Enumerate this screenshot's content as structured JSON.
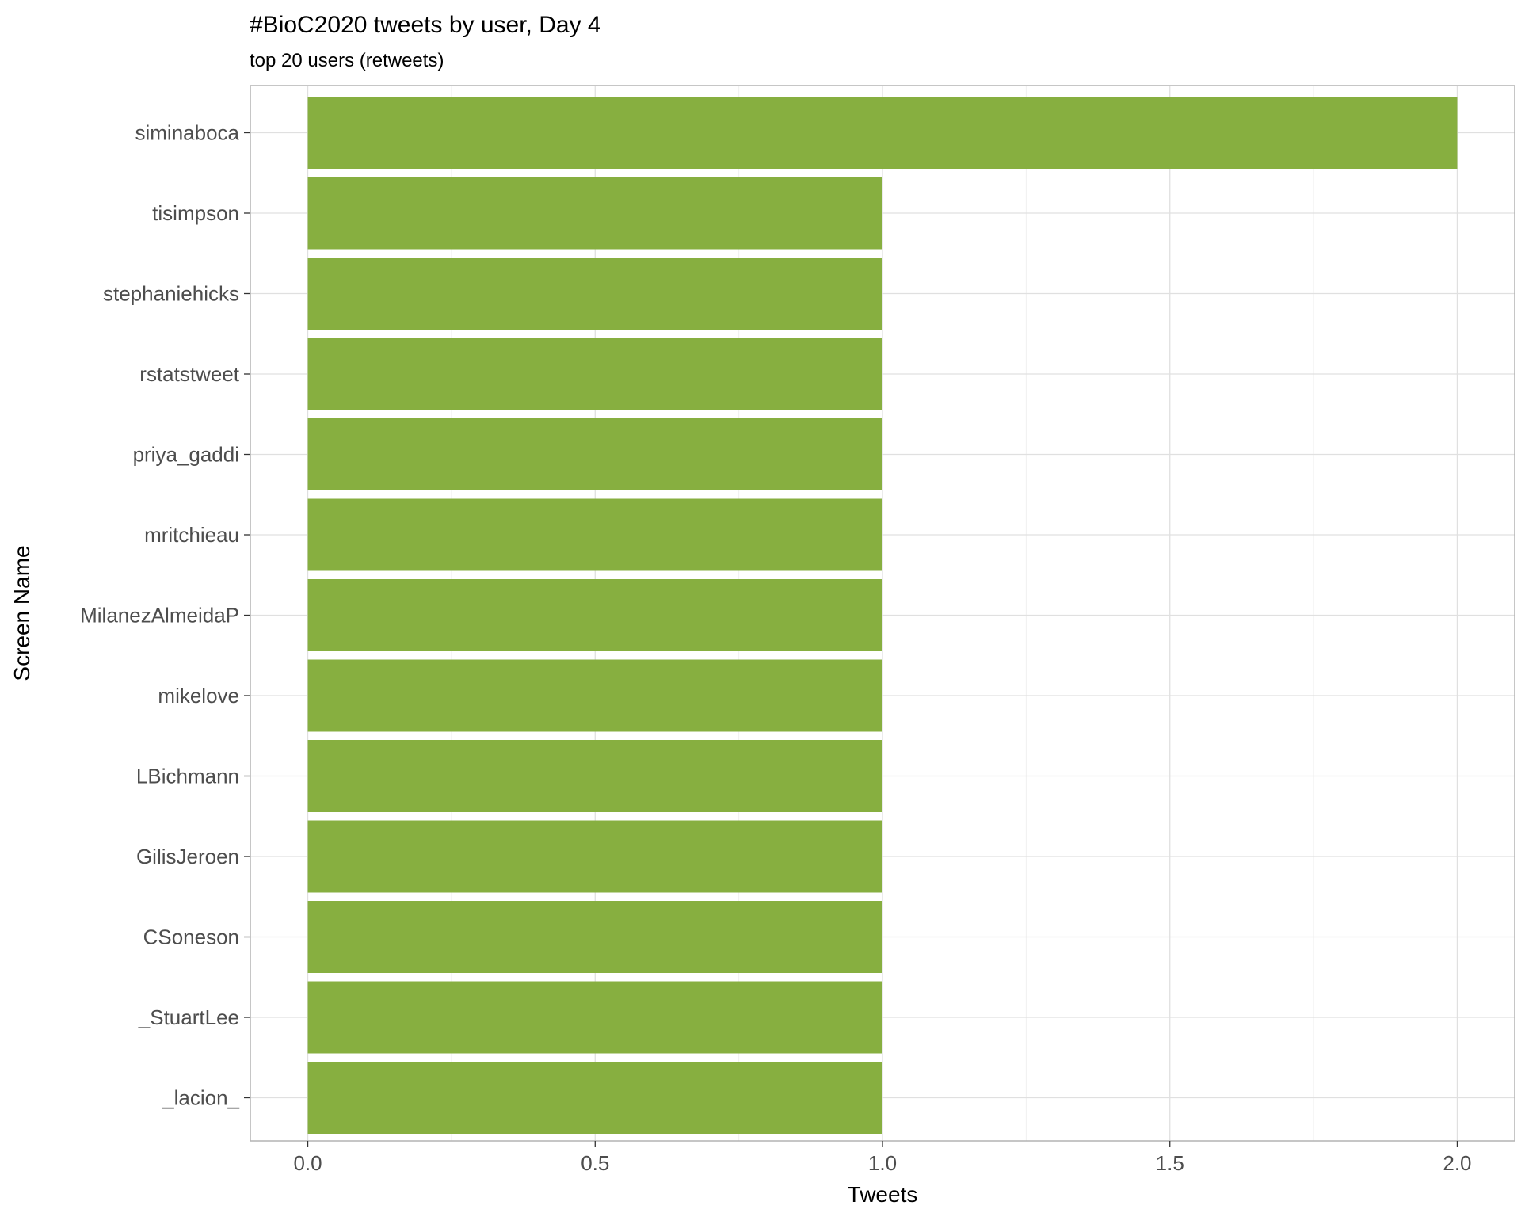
{
  "chart_data": {
    "type": "bar",
    "orientation": "horizontal",
    "title": "#BioC2020 tweets by user, Day 4",
    "subtitle": "top 20 users (retweets)",
    "xlabel": "Tweets",
    "ylabel": "Screen Name",
    "xlim": [
      -0.1,
      2.1
    ],
    "x_ticks": [
      "0.0",
      "0.5",
      "1.0",
      "1.5",
      "2.0"
    ],
    "categories": [
      "siminaboca",
      "tisimpson",
      "stephaniehicks",
      "rstatstweet",
      "priya_gaddi",
      "mritchieau",
      "MilanezAlmeidaP",
      "mikelove",
      "LBichmann",
      "GilisJeroen",
      "CSoneson",
      "_StuartLee",
      "_lacion_"
    ],
    "values": [
      2,
      1,
      1,
      1,
      1,
      1,
      1,
      1,
      1,
      1,
      1,
      1,
      1
    ],
    "bar_color": "#87af40",
    "grid": true,
    "legend": "none"
  }
}
